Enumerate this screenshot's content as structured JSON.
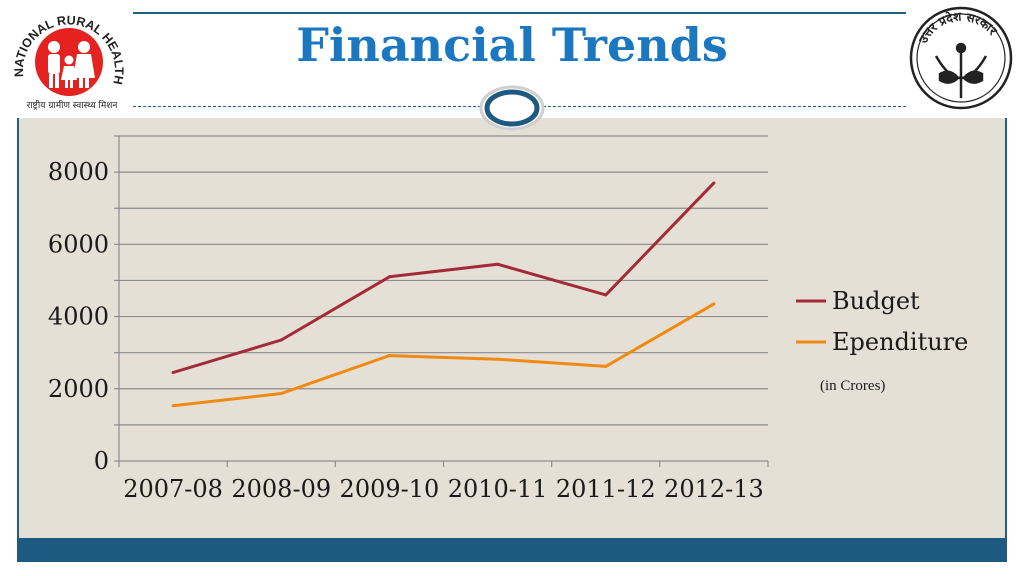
{
  "header": {
    "title": "Financial Trends",
    "left_logo_text": "NATIONAL RURAL HEALTH MISSION",
    "left_logo_subtext": "राष्ट्रीय ग्रामीण स्वास्थ्य मिशन",
    "right_logo_text": "उत्तर प्रदेश सरकार"
  },
  "note": "(in Crores)",
  "colors": {
    "title": "#1a77c0",
    "budget": "#a32a36",
    "expenditure": "#f08a12",
    "footer": "#1d5a82",
    "background": "#e4e0d6"
  },
  "chart_data": {
    "type": "line",
    "title": "",
    "xlabel": "",
    "ylabel": "",
    "categories": [
      "2007-08",
      "2008-09",
      "2009-10",
      "2010-11",
      "2011-12",
      "2012-13"
    ],
    "series": [
      {
        "name": "Budget",
        "values": [
          2450,
          3350,
          5100,
          5450,
          4600,
          7700
        ]
      },
      {
        "name": "Ependiture",
        "values": [
          1530,
          1870,
          2920,
          2820,
          2620,
          4350
        ]
      }
    ],
    "ylim": [
      0,
      9000
    ],
    "yticks": [
      0,
      2000,
      4000,
      6000,
      8000
    ],
    "grid": true,
    "legend_position": "right"
  }
}
